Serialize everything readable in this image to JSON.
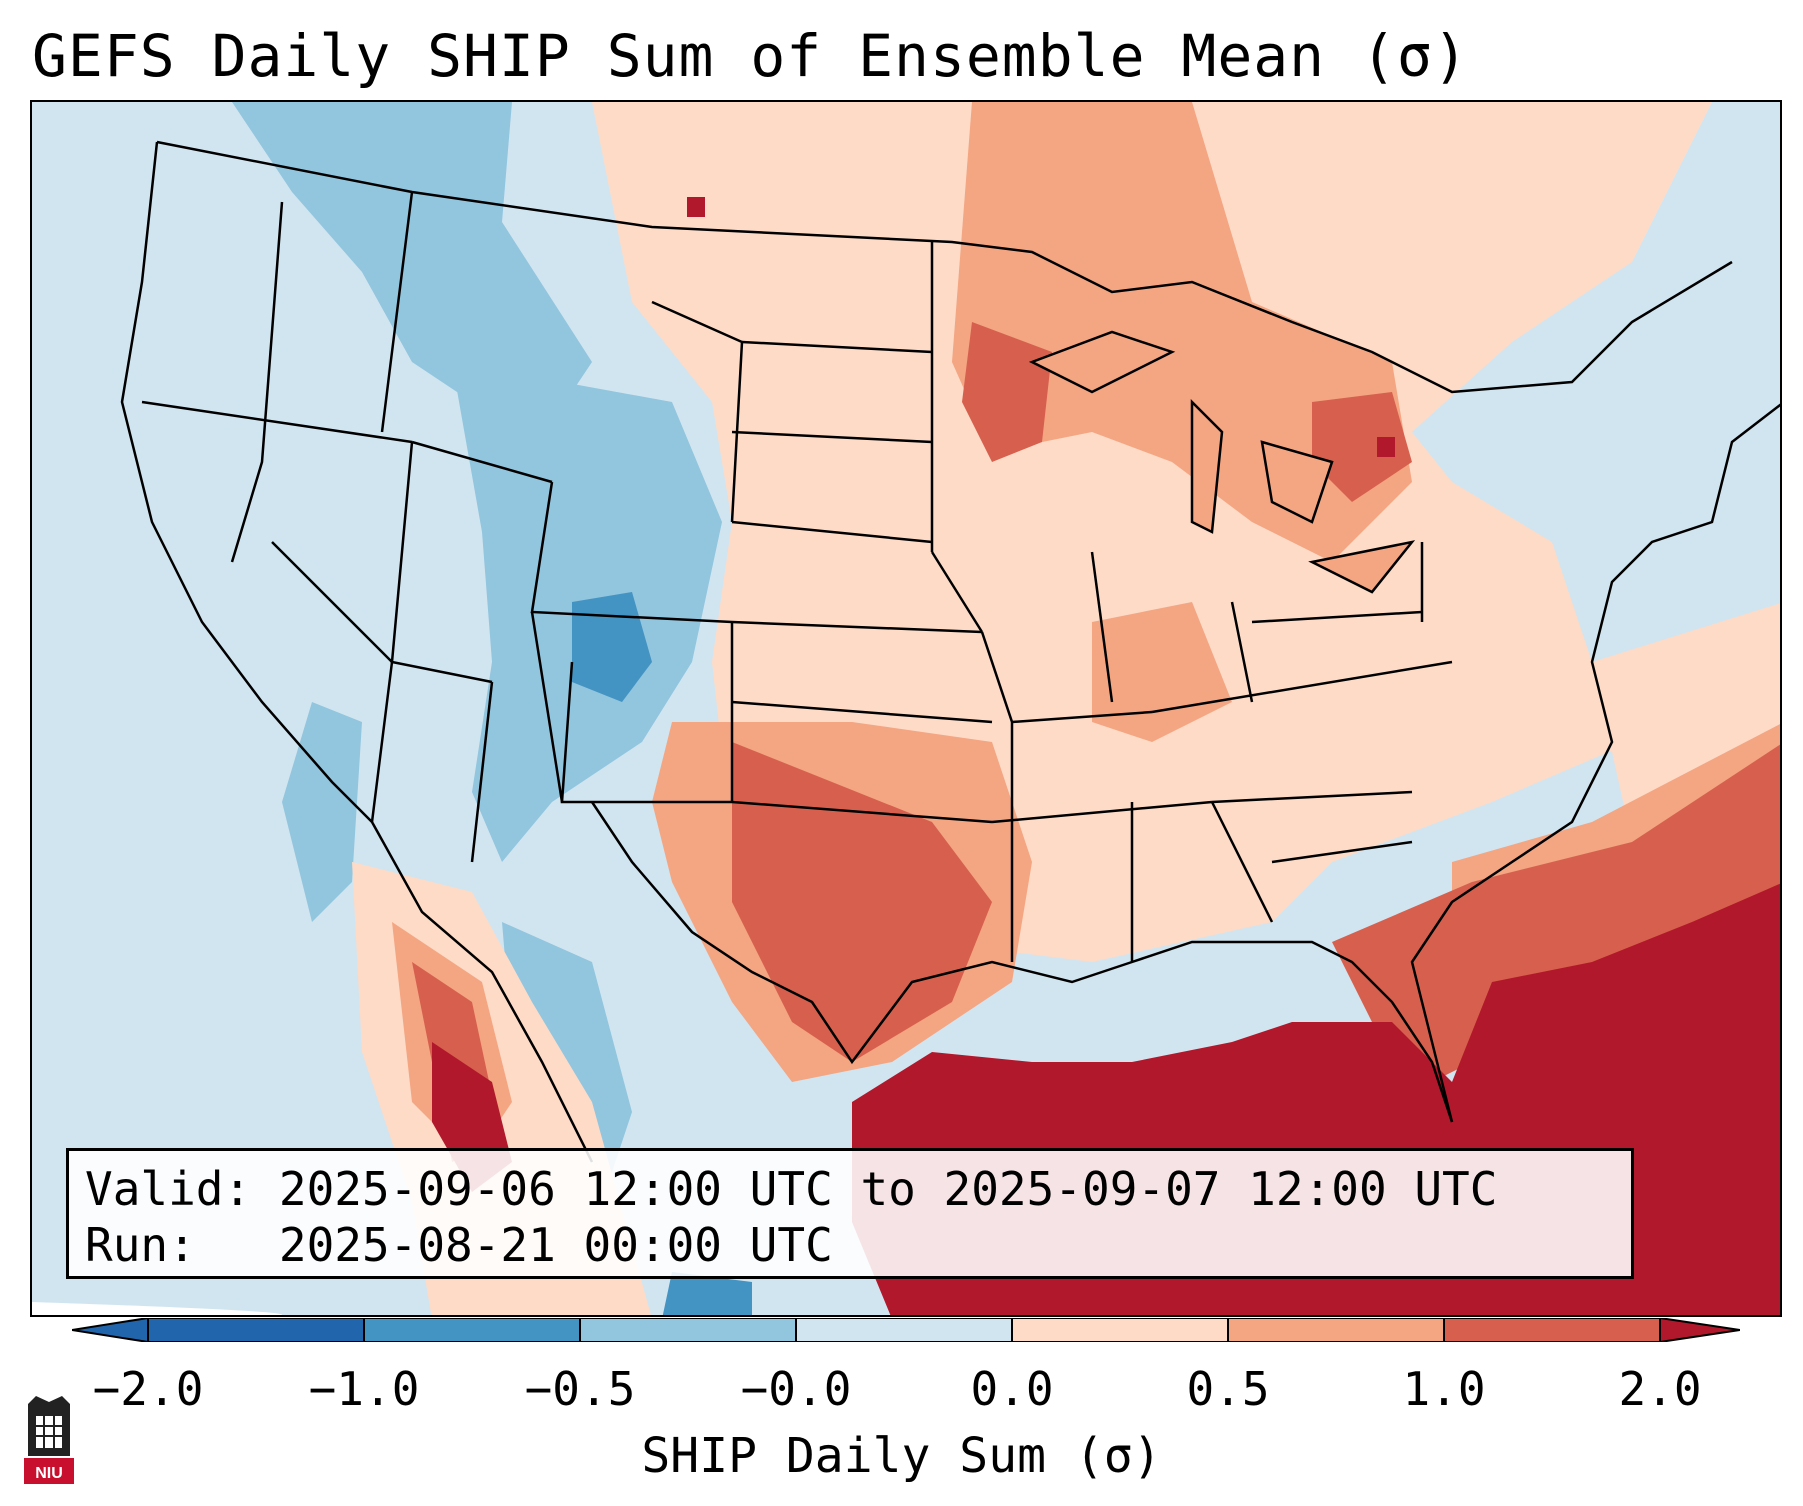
{
  "title": "GEFS Daily SHIP Sum of Ensemble Mean (σ)",
  "info": {
    "valid_label": "Valid:",
    "valid_value": "2025-09-06 12:00 UTC to 2025-09-07 12:00 UTC",
    "run_label": "Run:",
    "run_value": "2025-08-21 00:00 UTC"
  },
  "colorbar": {
    "label": "SHIP Daily Sum (σ)",
    "ticks": [
      "−2.0",
      "−1.0",
      "−0.5",
      "−0.0",
      "0.0",
      "0.5",
      "1.0",
      "2.0"
    ],
    "colors": [
      "#2166ac",
      "#4393c3",
      "#92c5de",
      "#d1e5f0",
      "#ffffff",
      "#fddbc7",
      "#f4a582",
      "#d6604d",
      "#b2182b"
    ]
  },
  "map": {
    "region": "Continental United States",
    "ocean_color": "#d1e5f0",
    "anomaly_regions": [
      {
        "region": "Gulf of Mexico",
        "sigma": 2.0
      },
      {
        "region": "Southeast Atlantic coast",
        "sigma": 1.5
      },
      {
        "region": "Texas",
        "sigma": 1.0
      },
      {
        "region": "Oklahoma",
        "sigma": 0.8
      },
      {
        "region": "Upper Midwest",
        "sigma": 0.8
      },
      {
        "region": "Michigan",
        "sigma": 1.0
      },
      {
        "region": "Northern Plains",
        "sigma": 0.3
      },
      {
        "region": "Central Rockies",
        "sigma": -0.8
      },
      {
        "region": "Northwest",
        "sigma": -0.3
      },
      {
        "region": "Pacific Ocean",
        "sigma": -0.2
      }
    ]
  },
  "logo": {
    "text": "NIU"
  }
}
